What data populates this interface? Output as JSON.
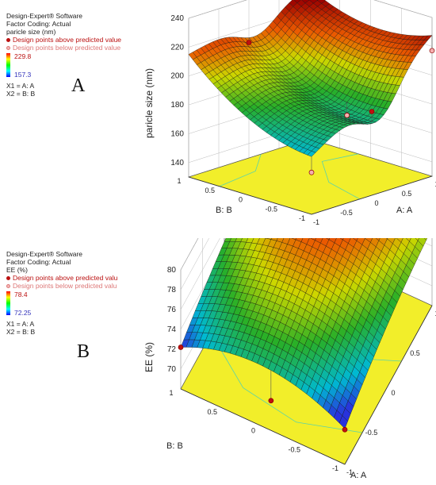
{
  "panels": [
    {
      "letter": "A",
      "legend": {
        "software": "Design-Expert® Software",
        "coding": "Factor Coding: Actual",
        "response": "paricle size  (nm)",
        "above": "Design points above predicted value",
        "below": "Design points below predicted value",
        "max": "229.8",
        "min": "157.3",
        "x1": "X1 = A: A",
        "x2": "X2 = B: B"
      }
    },
    {
      "letter": "B",
      "legend": {
        "software": "Design-Expert® Software",
        "coding": "Factor Coding: Actual",
        "response": "EE (%)",
        "above": "Design points above predicted valu",
        "below": "Design points below predicted valu",
        "max": "78.4",
        "min": "72.25",
        "x1": "X1 = A: A",
        "x2": "X2 = B: B"
      }
    }
  ],
  "chart_data": [
    {
      "type": "surface3d",
      "zlabel": "paricle size  (nm)",
      "xlabel": "A: A",
      "ylabel": "B: B",
      "xticks": [
        "-1",
        "-0.5",
        "0",
        "0.5",
        "1"
      ],
      "yticks": [
        "-1",
        "-0.5",
        "0",
        "0.5",
        "1"
      ],
      "zticks": [
        "140",
        "160",
        "180",
        "200",
        "220",
        "240"
      ],
      "xlim": [
        -1,
        1
      ],
      "ylim": [
        -1,
        1
      ],
      "zlim": [
        130,
        240
      ],
      "color_range": [
        157.3,
        229.8
      ],
      "surface_corners": {
        "a_-1_b_-1": 160,
        "a_-1_b_1": 205,
        "a_1_b_-1": 218,
        "a_1_b_1": 225
      },
      "design_points": [
        {
          "a": -1,
          "b": -1,
          "z": 159,
          "pos": "below"
        },
        {
          "a": 0,
          "b": 1,
          "z": 210,
          "pos": "above"
        },
        {
          "a": 0,
          "b": -1,
          "z": 188,
          "pos": "above"
        },
        {
          "a": 1,
          "b": 1,
          "z": 231,
          "pos": "above"
        },
        {
          "a": 1,
          "b": -1,
          "z": 217,
          "pos": "below"
        },
        {
          "a": 0.2,
          "b": -0.4,
          "z": 175,
          "pos": "below"
        }
      ]
    },
    {
      "type": "surface3d",
      "zlabel": "EE (%)",
      "xlabel": "A: A",
      "ylabel": "B: B",
      "xticks": [
        "-1",
        "-0.5",
        "0",
        "0.5",
        "1"
      ],
      "yticks": [
        "-1",
        "-0.5",
        "0",
        "0.5",
        "1"
      ],
      "zticks": [
        "70",
        "72",
        "74",
        "76",
        "78",
        "80"
      ],
      "xlim": [
        -1,
        1
      ],
      "ylim": [
        -1,
        1
      ],
      "zlim": [
        68,
        80
      ],
      "color_range": [
        72.25,
        78.4
      ],
      "surface_corners": {
        "a_-1_b_-1": 71.6,
        "a_-1_b_1": 72.2,
        "a_1_b_-1": 75.8,
        "a_1_b_1": 76.3
      },
      "design_points": [
        {
          "a": -1,
          "b": -1,
          "z": 71.5,
          "pos": "above"
        },
        {
          "a": -1,
          "b": 1,
          "z": 72.2,
          "pos": "above"
        },
        {
          "a": 0,
          "b": 1,
          "z": 76.6,
          "pos": "above"
        },
        {
          "a": 1,
          "b": 1,
          "z": 76.3,
          "pos": "above"
        },
        {
          "a": -1,
          "b": -0.1,
          "z": 71.0,
          "pos": "above"
        }
      ]
    }
  ]
}
